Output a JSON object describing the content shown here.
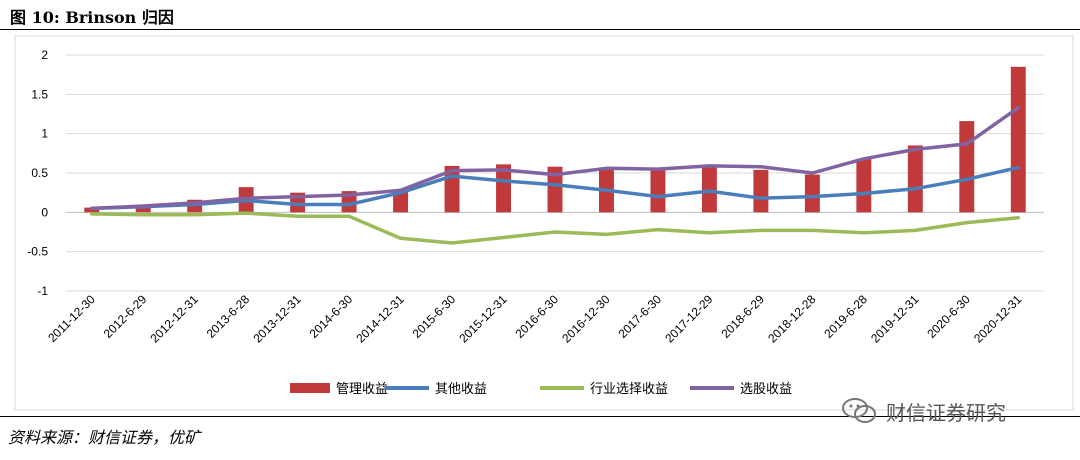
{
  "figure": {
    "title": "图 10: Brinson 归因",
    "source": "资料来源：财信证券，优矿",
    "watermark": "财信证券研究"
  },
  "colors": {
    "management": "#C0393B",
    "other": "#4A7EBB",
    "industry": "#9BBB59",
    "stock": "#8064A2",
    "grid": "#D9D9D9",
    "axis": "#BFBFBF"
  },
  "chart_data": {
    "type": "bar",
    "title": "",
    "xlabel": "",
    "ylabel": "",
    "ylim": [
      -1,
      2
    ],
    "yticks": [
      2,
      1.5,
      1,
      0.5,
      0,
      -0.5,
      -1
    ],
    "yticks_labels": [
      "2",
      "1.5",
      "1",
      "0.5",
      "0",
      "-0.5",
      "-1"
    ],
    "grid": true,
    "legend_position": "bottom",
    "categories": [
      "2011-12-30",
      "2012-6-29",
      "2012-12-31",
      "2013-6-28",
      "2013-12-31",
      "2014-6-30",
      "2014-12-31",
      "2015-6-30",
      "2015-12-31",
      "2016-6-30",
      "2016-12-30",
      "2017-6-30",
      "2017-12-29",
      "2018-6-29",
      "2018-12-28",
      "2019-6-28",
      "2019-12-31",
      "2020-6-30",
      "2020-12-31"
    ],
    "series": [
      {
        "name": "管理收益",
        "kind": "bar",
        "color": "#C0393B",
        "values": [
          0.06,
          0.08,
          0.16,
          0.32,
          0.25,
          0.27,
          0.29,
          0.59,
          0.61,
          0.58,
          0.56,
          0.56,
          0.58,
          0.54,
          0.48,
          0.68,
          0.85,
          1.16,
          1.85
        ]
      },
      {
        "name": "其他收益",
        "kind": "line",
        "color": "#4A7EBB",
        "values": [
          0.05,
          0.07,
          0.1,
          0.15,
          0.1,
          0.1,
          0.25,
          0.46,
          0.4,
          0.35,
          0.28,
          0.2,
          0.27,
          0.18,
          0.2,
          0.24,
          0.3,
          0.42,
          0.57
        ]
      },
      {
        "name": "行业选择收益",
        "kind": "line",
        "color": "#9BBB59",
        "values": [
          -0.02,
          -0.03,
          -0.03,
          -0.01,
          -0.05,
          -0.05,
          -0.33,
          -0.39,
          -0.32,
          -0.25,
          -0.28,
          -0.22,
          -0.26,
          -0.23,
          -0.23,
          -0.26,
          -0.23,
          -0.13,
          -0.07
        ]
      },
      {
        "name": "选股收益",
        "kind": "line",
        "color": "#8064A2",
        "values": [
          0.05,
          0.08,
          0.12,
          0.18,
          0.2,
          0.22,
          0.28,
          0.53,
          0.54,
          0.48,
          0.56,
          0.55,
          0.59,
          0.58,
          0.5,
          0.68,
          0.8,
          0.87,
          1.33
        ]
      }
    ]
  }
}
